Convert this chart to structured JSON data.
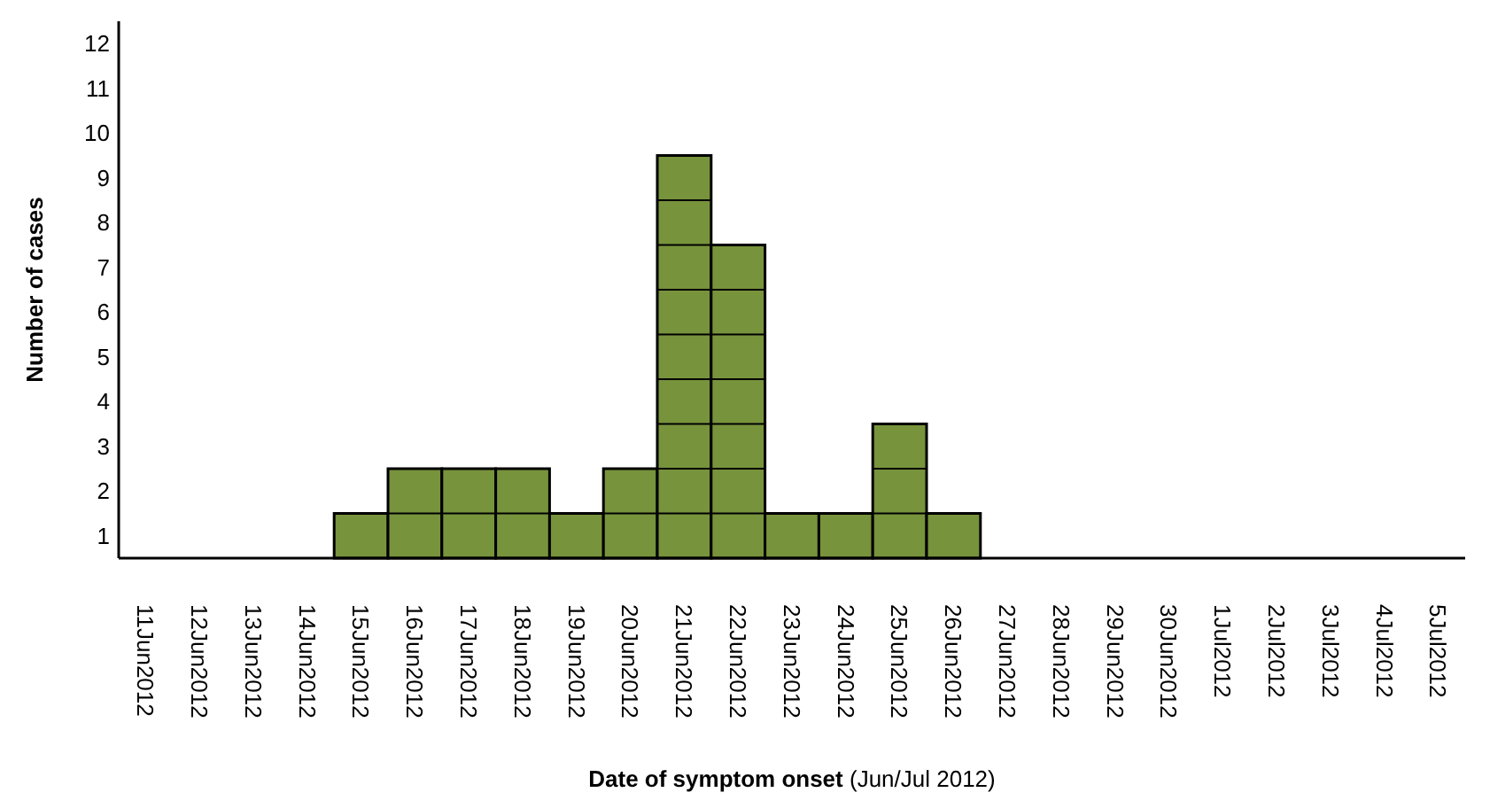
{
  "chart_data": {
    "type": "bar",
    "xlabel": "Date of symptom onset (Jun/Jul 2012)",
    "ylabel": "Number of cases",
    "categories": [
      "11Jun2012",
      "12Jun2012",
      "13Jun2012",
      "14Jun2012",
      "15Jun2012",
      "16Jun2012",
      "17Jun2012",
      "18Jun2012",
      "19Jun2012",
      "20Jun2012",
      "21Jun2012",
      "22Jun2012",
      "23Jun2012",
      "24Jun2012",
      "25Jun2012",
      "26Jun2012",
      "27Jun2012",
      "28Jun2012",
      "29Jun2012",
      "30Jun2012",
      "1Jul2012",
      "2Jul2012",
      "3Jul2012",
      "4Jul2012",
      "5Jul2012"
    ],
    "values": [
      0,
      0,
      0,
      0,
      1,
      2,
      2,
      2,
      1,
      2,
      9,
      7,
      1,
      1,
      3,
      1,
      0,
      0,
      0,
      0,
      0,
      0,
      0,
      0,
      0
    ],
    "color": "#77933c",
    "ylim": [
      0,
      12
    ],
    "yticks": [
      {
        "value": 0.5,
        "label": "1"
      },
      {
        "value": 1.5,
        "label": "2"
      },
      {
        "value": 2.5,
        "label": "3"
      },
      {
        "value": 3.5,
        "label": "4"
      },
      {
        "value": 4.5,
        "label": "5"
      },
      {
        "value": 5.5,
        "label": "6"
      },
      {
        "value": 6.5,
        "label": "7"
      },
      {
        "value": 7.5,
        "label": "8"
      },
      {
        "value": 8.5,
        "label": "9"
      },
      {
        "value": 9.5,
        "label": "10"
      },
      {
        "value": 10.5,
        "label": "11"
      },
      {
        "value": 11.5,
        "label": "12"
      }
    ],
    "grid": false
  }
}
